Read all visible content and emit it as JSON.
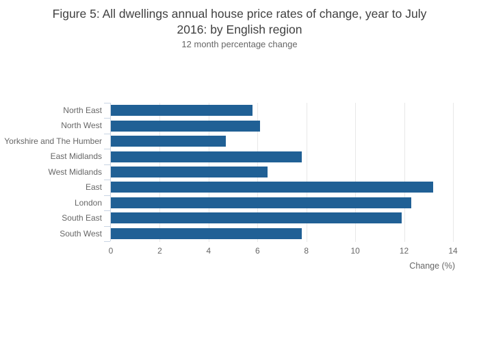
{
  "page": {
    "background": "#ffffff"
  },
  "chart_data": {
    "type": "bar",
    "orientation": "horizontal",
    "title_line1": "Figure 5: All dwellings annual house price rates of change, year to July",
    "title_line2": "2016: by English region",
    "subtitle": "12 month percentage change",
    "categories": [
      "North East",
      "North West",
      "Yorkshire and The Humber",
      "East Midlands",
      "West Midlands",
      "East",
      "London",
      "South East",
      "South West"
    ],
    "values": [
      5.8,
      6.1,
      4.7,
      7.8,
      6.4,
      13.2,
      12.3,
      11.9,
      7.8
    ],
    "xlabel": "Change (%)",
    "xlim": [
      0,
      14
    ],
    "xticks": [
      0,
      2,
      4,
      6,
      8,
      10,
      12,
      14
    ],
    "grid": true,
    "legend": false,
    "colors": {
      "bar": "#206095",
      "gridline": "#e8e8e8",
      "axis_line": "#c8d4e3",
      "tick_label": "#666666",
      "title": "#404040",
      "subtitle": "#666666"
    }
  }
}
